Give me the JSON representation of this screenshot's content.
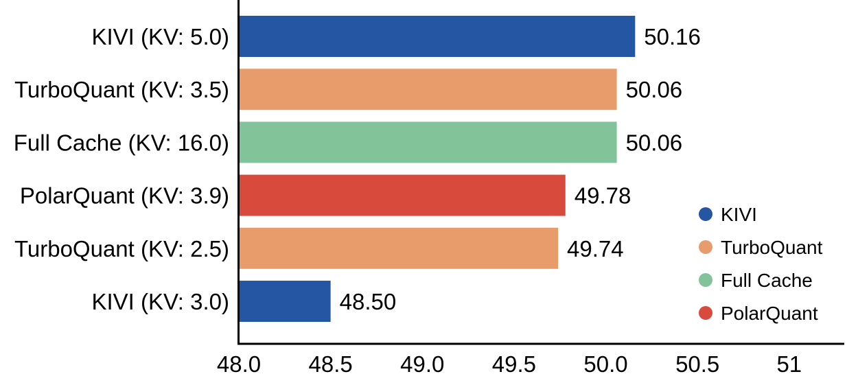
{
  "figure": {
    "background": "#ffffff"
  },
  "chart_data": {
    "type": "bar",
    "orientation": "horizontal",
    "title": "",
    "xlabel": "",
    "ylabel": "",
    "grid": false,
    "axis_color": "#000000",
    "text_color": "#000000",
    "xlim": [
      48.0,
      51.3
    ],
    "categories": [
      "KIVI (KV: 5.0)",
      "TurboQuant (KV: 3.5)",
      "Full Cache (KV: 16.0)",
      "PolarQuant (KV: 3.9)",
      "TurboQuant (KV: 2.5)",
      "KIVI (KV: 3.0)"
    ],
    "values": [
      50.16,
      50.06,
      50.06,
      49.78,
      49.74,
      48.5
    ],
    "data_labels": [
      "50.16",
      "50.06",
      "50.06",
      "49.78",
      "49.74",
      "48.50"
    ],
    "bar_series": [
      "KIVI",
      "TurboQuant",
      "Full Cache",
      "PolarQuant",
      "TurboQuant",
      "KIVI"
    ],
    "x_tick_values": [
      48.0,
      48.5,
      49.0,
      49.5,
      50.0,
      50.5,
      51.0
    ],
    "x_tick_labels": [
      "48.0",
      "48.5",
      "49.0",
      "49.5",
      "50.0",
      "50.5",
      "51"
    ],
    "legend": {
      "position": "right-middle",
      "entries": [
        {
          "label": "KIVI",
          "color": "#2456a4"
        },
        {
          "label": "TurboQuant",
          "color": "#e99c6b"
        },
        {
          "label": "Full Cache",
          "color": "#83c39a"
        },
        {
          "label": "PolarQuant",
          "color": "#d84b3c"
        }
      ]
    }
  }
}
